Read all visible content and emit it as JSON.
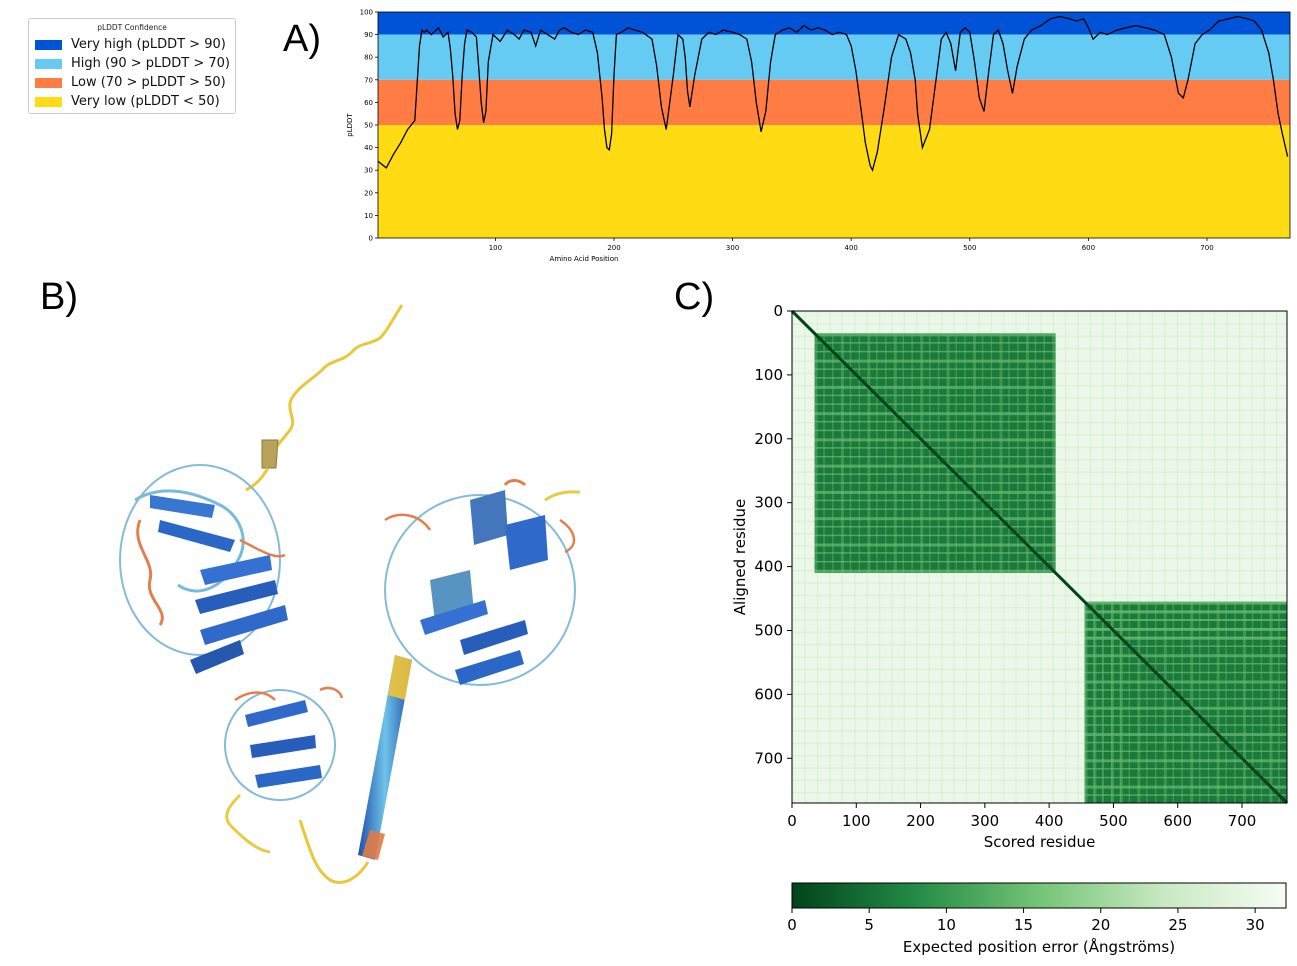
{
  "panels": {
    "a": "A)",
    "b": "B)",
    "c": "C)"
  },
  "legend": {
    "title": "pLDDT Confidence",
    "items": [
      {
        "label": "Very high (pLDDT > 90)",
        "color": "#0053D6"
      },
      {
        "label": "High (90 > pLDDT > 70)",
        "color": "#65CBF3"
      },
      {
        "label": "Low (70 > pLDDT > 50)",
        "color": "#FF7D45"
      },
      {
        "label": "Very low (pLDDT < 50)",
        "color": "#FFDB13"
      }
    ]
  },
  "chart_data": [
    {
      "type": "line",
      "panel": "A)",
      "xlabel": "Amino Acid Position",
      "ylabel": "pLDDT",
      "xlim": [
        1,
        770
      ],
      "ylim": [
        0,
        100
      ],
      "xticks": [
        100,
        200,
        300,
        400,
        500,
        600,
        700
      ],
      "yticks": [
        0,
        10,
        20,
        30,
        40,
        50,
        60,
        70,
        80,
        90,
        100
      ],
      "grid": false,
      "legend_position": "top-left",
      "bands": [
        {
          "from": 90,
          "to": 100,
          "color": "#0053D6"
        },
        {
          "from": 70,
          "to": 90,
          "color": "#65CBF3"
        },
        {
          "from": 50,
          "to": 70,
          "color": "#FF7D45"
        },
        {
          "from": 0,
          "to": 50,
          "color": "#FFDB13"
        }
      ],
      "series": [
        {
          "color": "#000000",
          "x": [
            1,
            8,
            14,
            20,
            26,
            32,
            36,
            38,
            40,
            42,
            46,
            52,
            56,
            60,
            62,
            64,
            66,
            68,
            70,
            72,
            74,
            76,
            80,
            84,
            86,
            88,
            90,
            92,
            94,
            98,
            104,
            110,
            116,
            120,
            124,
            130,
            134,
            138,
            144,
            150,
            154,
            158,
            164,
            170,
            176,
            182,
            186,
            190,
            192,
            194,
            196,
            198,
            200,
            202,
            206,
            212,
            218,
            224,
            232,
            236,
            240,
            244,
            250,
            254,
            258,
            260,
            262,
            264,
            268,
            274,
            280,
            286,
            292,
            300,
            306,
            312,
            316,
            320,
            324,
            328,
            332,
            336,
            342,
            348,
            354,
            360,
            366,
            372,
            378,
            384,
            390,
            396,
            400,
            404,
            408,
            412,
            416,
            418,
            422,
            428,
            434,
            440,
            446,
            450,
            454,
            456,
            460,
            466,
            472,
            476,
            480,
            484,
            488,
            492,
            496,
            500,
            504,
            508,
            512,
            516,
            520,
            524,
            528,
            532,
            536,
            540,
            546,
            552,
            560,
            568,
            576,
            584,
            590,
            596,
            600,
            604,
            610,
            616,
            624,
            632,
            640,
            648,
            656,
            664,
            670,
            676,
            680,
            684,
            690,
            696,
            702,
            710,
            718,
            726,
            734,
            740,
            746,
            752,
            756,
            760,
            764,
            768
          ],
          "y": [
            34,
            31,
            37,
            42,
            48,
            52,
            85,
            92,
            91,
            92,
            90,
            93,
            89,
            91,
            84,
            72,
            55,
            48,
            52,
            72,
            86,
            92,
            91,
            89,
            75,
            60,
            51,
            56,
            78,
            90,
            87,
            92,
            90,
            88,
            92,
            91,
            85,
            92,
            90,
            88,
            92,
            93,
            91,
            90,
            92,
            91,
            82,
            62,
            48,
            40,
            39,
            46,
            72,
            90,
            91,
            93,
            92,
            91,
            88,
            76,
            58,
            48,
            72,
            90,
            88,
            80,
            65,
            58,
            72,
            88,
            91,
            90,
            92,
            91,
            90,
            88,
            78,
            60,
            47,
            56,
            78,
            90,
            92,
            93,
            91,
            94,
            92,
            93,
            92,
            90,
            91,
            90,
            85,
            74,
            58,
            42,
            32,
            30,
            38,
            58,
            80,
            90,
            88,
            82,
            70,
            55,
            40,
            48,
            72,
            88,
            91,
            86,
            74,
            91,
            93,
            91,
            78,
            62,
            56,
            74,
            90,
            92,
            86,
            74,
            64,
            76,
            88,
            92,
            94,
            97,
            98,
            97,
            96,
            97,
            93,
            88,
            91,
            90,
            92,
            93,
            94,
            93,
            92,
            90,
            80,
            64,
            62,
            70,
            86,
            90,
            92,
            96,
            97,
            98,
            97,
            96,
            92,
            82,
            70,
            55,
            45,
            36
          ]
        }
      ]
    },
    {
      "type": "heatmap",
      "panel": "C)",
      "xlabel": "Scored residue",
      "ylabel": "Aligned residue",
      "xlim": [
        0,
        770
      ],
      "ylim": [
        770,
        0
      ],
      "xticks": [
        0,
        100,
        200,
        300,
        400,
        500,
        600,
        700
      ],
      "yticks": [
        0,
        100,
        200,
        300,
        400,
        500,
        600,
        700
      ],
      "colorscale": [
        "#00441b",
        "#238b45",
        "#74c476",
        "#c7e9c0",
        "#f7fcf5"
      ],
      "colorbar": {
        "label": "Expected position error (Ångströms)",
        "min": 0,
        "max": 32,
        "ticks": [
          0,
          5,
          10,
          15,
          20,
          25,
          30
        ],
        "orientation": "horizontal"
      },
      "blocks": [
        {
          "from": 35,
          "to": 410,
          "pae": 6
        },
        {
          "from": 455,
          "to": 770,
          "pae": 6
        }
      ]
    }
  ]
}
